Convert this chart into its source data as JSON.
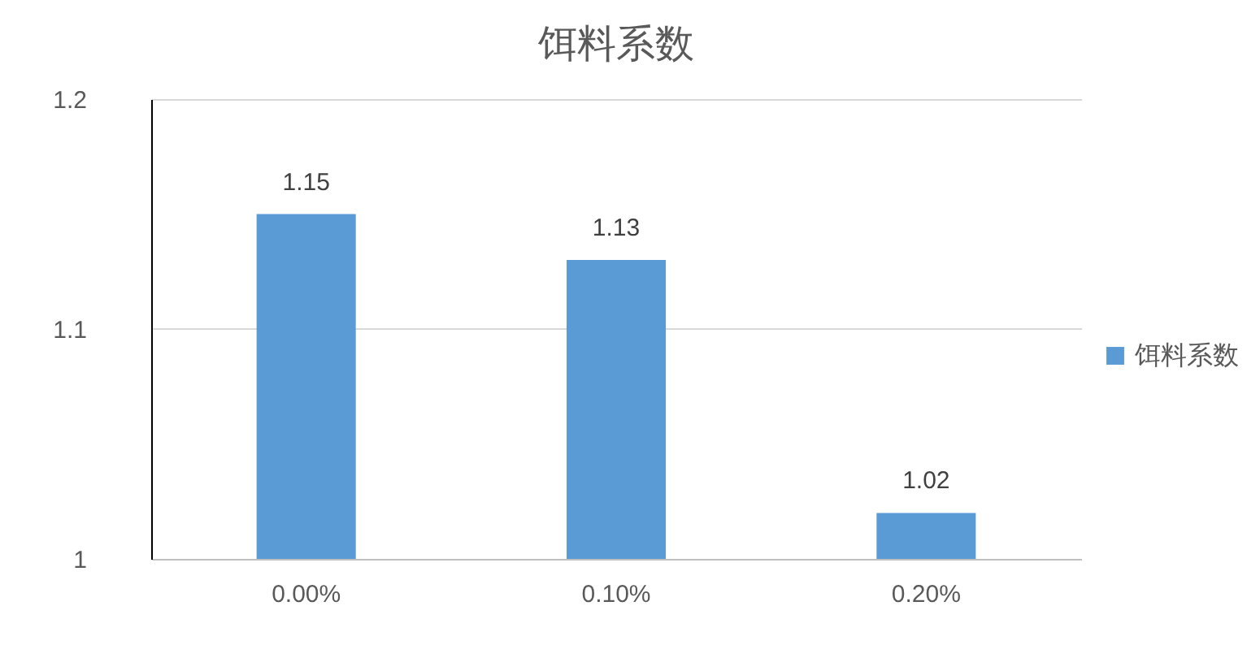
{
  "chart_data": {
    "type": "bar",
    "title": "饵料系数",
    "categories": [
      "0.00%",
      "0.10%",
      "0.20%"
    ],
    "series": [
      {
        "name": "饵料系数",
        "color": "#5b9bd5",
        "values": [
          1.15,
          1.13,
          1.02
        ]
      }
    ],
    "ylim": [
      1,
      1.2
    ],
    "yticks": [
      1,
      1.1,
      1.2
    ],
    "grid": "y",
    "legend": "right",
    "data_labels": true
  }
}
